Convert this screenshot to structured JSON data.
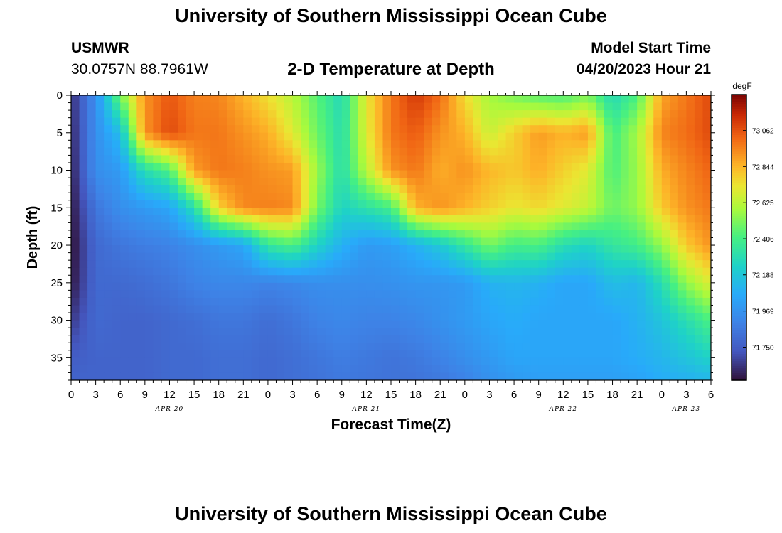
{
  "header": {
    "title": "University of Southern Mississippi Ocean Cube",
    "station": "USMWR",
    "coords": "30.0757N  88.7961W",
    "subtitle": "2-D Temperature at Depth",
    "model_label": "Model Start Time",
    "model_time": "04/20/2023 Hour 21"
  },
  "footer": {
    "title": "University of Southern Mississippi Ocean Cube"
  },
  "chart_data": {
    "type": "heatmap",
    "title": "2-D Temperature at Depth",
    "xlabel": "Forecast Time(Z)",
    "ylabel": "Depth (ft)",
    "x_range_hours": [
      0,
      78
    ],
    "y_range_ft": [
      0,
      38
    ],
    "x_ticks": [
      {
        "h": 0,
        "label": "0"
      },
      {
        "h": 3,
        "label": "3"
      },
      {
        "h": 6,
        "label": "6"
      },
      {
        "h": 9,
        "label": "9"
      },
      {
        "h": 12,
        "label": "12"
      },
      {
        "h": 15,
        "label": "15"
      },
      {
        "h": 18,
        "label": "18"
      },
      {
        "h": 21,
        "label": "21"
      },
      {
        "h": 24,
        "label": "0"
      },
      {
        "h": 27,
        "label": "3"
      },
      {
        "h": 30,
        "label": "6"
      },
      {
        "h": 33,
        "label": "9"
      },
      {
        "h": 36,
        "label": "12"
      },
      {
        "h": 39,
        "label": "15"
      },
      {
        "h": 42,
        "label": "18"
      },
      {
        "h": 45,
        "label": "21"
      },
      {
        "h": 48,
        "label": "0"
      },
      {
        "h": 51,
        "label": "3"
      },
      {
        "h": 54,
        "label": "6"
      },
      {
        "h": 57,
        "label": "9"
      },
      {
        "h": 60,
        "label": "12"
      },
      {
        "h": 63,
        "label": "15"
      },
      {
        "h": 66,
        "label": "18"
      },
      {
        "h": 69,
        "label": "21"
      },
      {
        "h": 72,
        "label": "0"
      },
      {
        "h": 75,
        "label": "3"
      },
      {
        "h": 78,
        "label": "6"
      }
    ],
    "date_labels": [
      {
        "h": 12,
        "label": "APR 20"
      },
      {
        "h": 36,
        "label": "APR 21"
      },
      {
        "h": 60,
        "label": "APR 22"
      },
      {
        "h": 75,
        "label": "APR 23"
      }
    ],
    "y_ticks": [
      0,
      5,
      10,
      15,
      20,
      25,
      30,
      35
    ],
    "colorbar": {
      "unit": "degF",
      "min": 71.55,
      "max": 73.28,
      "ticks": [
        71.75,
        71.969,
        72.188,
        72.406,
        72.625,
        72.844,
        73.062
      ],
      "tick_labels": [
        "71.750",
        "71.969",
        "72.188",
        "72.406",
        "72.625",
        "72.844",
        "73.062"
      ]
    },
    "grid_hours": [
      0,
      3,
      6,
      9,
      12,
      15,
      18,
      21,
      24,
      27,
      30,
      33,
      36,
      39,
      42,
      45,
      48,
      51,
      54,
      57,
      60,
      63,
      66,
      69,
      72,
      75,
      78
    ],
    "grid_depths": [
      0,
      5,
      10,
      15,
      20,
      25,
      30,
      35,
      38
    ],
    "values": [
      [
        71.62,
        71.95,
        72.5,
        72.92,
        73.05,
        72.96,
        72.95,
        72.85,
        72.74,
        72.62,
        72.44,
        72.28,
        72.72,
        72.98,
        73.12,
        73.0,
        72.75,
        72.58,
        72.5,
        72.44,
        72.42,
        72.5,
        72.28,
        72.42,
        72.88,
        72.98,
        73.08
      ],
      [
        71.6,
        71.95,
        72.15,
        72.92,
        73.08,
        72.98,
        72.98,
        72.92,
        72.86,
        72.7,
        72.48,
        72.3,
        72.7,
        72.98,
        73.04,
        72.92,
        72.85,
        72.65,
        72.78,
        72.9,
        72.85,
        72.9,
        72.4,
        72.58,
        72.95,
        73.0,
        73.08
      ],
      [
        71.58,
        71.95,
        72.0,
        72.3,
        72.42,
        72.9,
        72.98,
        72.96,
        72.92,
        72.9,
        72.56,
        72.3,
        72.62,
        72.92,
        72.98,
        72.86,
        72.92,
        72.84,
        72.8,
        72.86,
        72.78,
        72.7,
        72.42,
        72.56,
        72.86,
        72.95,
        73.02
      ],
      [
        71.56,
        71.85,
        71.95,
        72.0,
        72.05,
        72.3,
        72.78,
        72.94,
        72.96,
        72.94,
        72.5,
        72.25,
        72.32,
        72.4,
        72.85,
        72.92,
        72.85,
        72.78,
        72.72,
        72.76,
        72.7,
        72.64,
        72.48,
        72.55,
        72.8,
        72.92,
        72.98
      ],
      [
        71.54,
        71.8,
        71.85,
        71.88,
        71.9,
        71.95,
        72.0,
        72.05,
        72.35,
        72.42,
        72.25,
        72.1,
        72.0,
        72.02,
        72.1,
        72.2,
        72.35,
        72.5,
        72.4,
        72.42,
        72.3,
        72.25,
        72.35,
        72.4,
        72.55,
        72.8,
        72.92
      ],
      [
        71.56,
        71.8,
        71.8,
        71.82,
        71.85,
        71.9,
        71.92,
        71.92,
        71.9,
        71.92,
        71.95,
        71.95,
        71.95,
        71.96,
        71.98,
        71.98,
        72.0,
        72.1,
        72.12,
        72.1,
        72.05,
        72.05,
        72.15,
        72.12,
        72.3,
        72.55,
        72.7
      ],
      [
        71.65,
        71.8,
        71.78,
        71.78,
        71.8,
        71.82,
        71.85,
        71.85,
        71.82,
        71.85,
        71.9,
        71.92,
        71.9,
        71.9,
        71.92,
        71.96,
        72.0,
        72.05,
        72.08,
        72.05,
        72.05,
        72.05,
        72.05,
        72.1,
        72.18,
        72.3,
        72.42
      ],
      [
        71.75,
        71.78,
        71.78,
        71.78,
        71.8,
        71.8,
        71.82,
        71.82,
        71.8,
        71.82,
        71.85,
        71.88,
        71.86,
        71.84,
        71.86,
        71.9,
        71.95,
        72.0,
        72.05,
        72.05,
        72.05,
        72.05,
        72.05,
        72.08,
        72.12,
        72.18,
        72.25
      ],
      [
        71.78,
        71.78,
        71.78,
        71.78,
        71.8,
        71.8,
        71.82,
        71.82,
        71.8,
        71.82,
        71.84,
        71.86,
        71.85,
        71.84,
        71.84,
        71.86,
        71.9,
        71.96,
        72.0,
        72.02,
        72.02,
        72.02,
        72.02,
        72.04,
        72.08,
        72.1,
        72.12
      ]
    ]
  }
}
